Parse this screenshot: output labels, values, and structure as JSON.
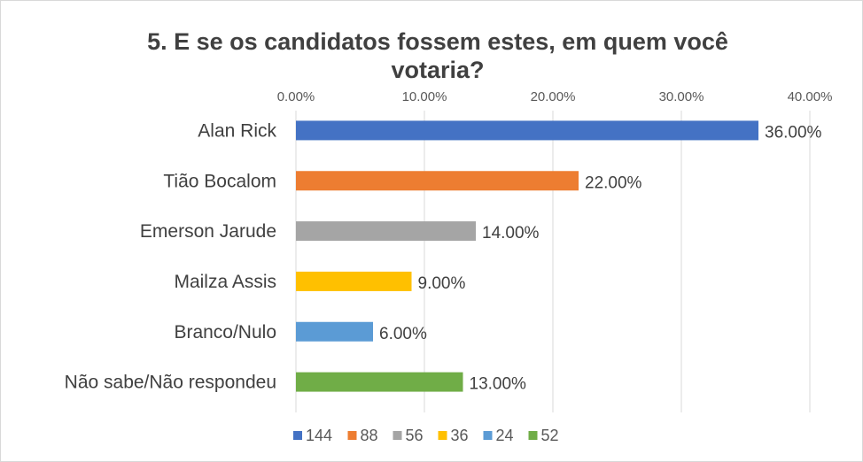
{
  "chart_data": {
    "type": "bar",
    "orientation": "horizontal",
    "title": "5. E se os candidatos fossem estes, em quem você votaria?",
    "title_lines": [
      "5. E se os candidatos fossem estes, em quem você",
      "votaria?"
    ],
    "categories": [
      "Alan Rick",
      "Tião Bocalom",
      "Emerson Jarude",
      "Mailza Assis",
      "Branco/Nulo",
      "Não sabe/Não respondeu"
    ],
    "values": [
      36,
      22,
      14,
      9,
      6,
      13
    ],
    "data_labels": [
      "36.00%",
      "22.00%",
      "14.00%",
      "9.00%",
      "6.00%",
      "13.00%"
    ],
    "colors": [
      "#4472C4",
      "#ED7D31",
      "#A5A5A5",
      "#FFC000",
      "#5B9BD5",
      "#70AD47"
    ],
    "legend": [
      "144",
      "88",
      "56",
      "36",
      "24",
      "52"
    ],
    "legend_placement": "bottom",
    "xlim": [
      0,
      40
    ],
    "xticks": [
      0,
      10,
      20,
      30,
      40
    ],
    "xtick_labels": [
      "0.00%",
      "10.00%",
      "20.00%",
      "30.00%",
      "40.00%"
    ],
    "xaxis_position": "top",
    "grid": true,
    "xlabel": "",
    "ylabel": ""
  }
}
